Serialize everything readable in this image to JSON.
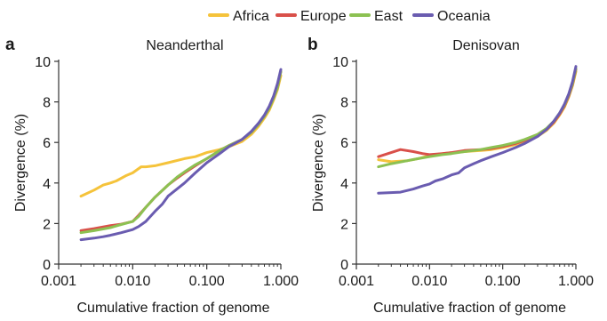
{
  "legend": {
    "items": [
      {
        "name": "Africa",
        "color": "#f5c33b"
      },
      {
        "name": "Europe",
        "color": "#d9504a"
      },
      {
        "name": "East",
        "color": "#8cc152"
      },
      {
        "name": "Oceania",
        "color": "#6a5cb0"
      }
    ]
  },
  "chart_data": [
    {
      "type": "line",
      "panel_label": "a",
      "title": "Neanderthal",
      "xlabel": "Cumulative fraction of genome",
      "ylabel": "Divergence (%)",
      "x_scale": "log",
      "xlim": [
        0.001,
        1.0
      ],
      "ylim": [
        0,
        10
      ],
      "x_ticks": [
        "0.001",
        "0.010",
        "0.100",
        "1.000"
      ],
      "x_tick_values": [
        0.001,
        0.01,
        0.1,
        1.0
      ],
      "y_ticks": [
        "0",
        "2",
        "4",
        "6",
        "8",
        "10"
      ],
      "y_tick_values": [
        0,
        2,
        4,
        6,
        8,
        10
      ],
      "grid": false,
      "legend_position": "top",
      "series": [
        {
          "name": "Africa",
          "color": "#f5c33b",
          "x": [
            0.002,
            0.003,
            0.004,
            0.005,
            0.006,
            0.008,
            0.01,
            0.013,
            0.015,
            0.02,
            0.03,
            0.05,
            0.07,
            0.1,
            0.15,
            0.2,
            0.3,
            0.4,
            0.5,
            0.6,
            0.7,
            0.8,
            0.9,
            1.0
          ],
          "y": [
            3.35,
            3.65,
            3.9,
            4.0,
            4.1,
            4.35,
            4.5,
            4.8,
            4.8,
            4.85,
            5.0,
            5.2,
            5.3,
            5.5,
            5.65,
            5.8,
            6.05,
            6.4,
            6.8,
            7.2,
            7.6,
            8.1,
            8.6,
            9.3
          ]
        },
        {
          "name": "Europe",
          "color": "#d9504a",
          "x": [
            0.002,
            0.003,
            0.005,
            0.007,
            0.01,
            0.012,
            0.015,
            0.02,
            0.03,
            0.04,
            0.05,
            0.07,
            0.1,
            0.15,
            0.2,
            0.3,
            0.4,
            0.5,
            0.6,
            0.7,
            0.8,
            0.9,
            1.0
          ],
          "y": [
            1.65,
            1.75,
            1.9,
            1.97,
            2.1,
            2.4,
            2.8,
            3.3,
            3.9,
            4.25,
            4.5,
            4.85,
            5.2,
            5.6,
            5.85,
            6.15,
            6.5,
            6.9,
            7.3,
            7.7,
            8.2,
            8.7,
            9.5
          ]
        },
        {
          "name": "East",
          "color": "#8cc152",
          "x": [
            0.002,
            0.003,
            0.005,
            0.007,
            0.01,
            0.012,
            0.015,
            0.02,
            0.03,
            0.04,
            0.05,
            0.07,
            0.1,
            0.15,
            0.2,
            0.3,
            0.4,
            0.5,
            0.6,
            0.7,
            0.8,
            0.9,
            1.0
          ],
          "y": [
            1.55,
            1.65,
            1.8,
            1.95,
            2.1,
            2.35,
            2.8,
            3.3,
            3.9,
            4.3,
            4.55,
            4.9,
            5.2,
            5.6,
            5.85,
            6.15,
            6.5,
            6.9,
            7.3,
            7.7,
            8.2,
            8.7,
            9.5
          ]
        },
        {
          "name": "Oceania",
          "color": "#6a5cb0",
          "x": [
            0.002,
            0.003,
            0.004,
            0.005,
            0.007,
            0.01,
            0.012,
            0.015,
            0.02,
            0.025,
            0.03,
            0.05,
            0.07,
            0.1,
            0.15,
            0.2,
            0.3,
            0.4,
            0.5,
            0.6,
            0.7,
            0.8,
            0.9,
            1.0
          ],
          "y": [
            1.2,
            1.28,
            1.35,
            1.42,
            1.55,
            1.7,
            1.85,
            2.1,
            2.6,
            2.95,
            3.35,
            4.0,
            4.5,
            5.0,
            5.45,
            5.8,
            6.15,
            6.55,
            6.95,
            7.35,
            7.8,
            8.3,
            8.9,
            9.6
          ]
        }
      ]
    },
    {
      "type": "line",
      "panel_label": "b",
      "title": "Denisovan",
      "xlabel": "Cumulative fraction of genome",
      "ylabel": "Divergence (%)",
      "x_scale": "log",
      "xlim": [
        0.001,
        1.0
      ],
      "ylim": [
        0,
        10
      ],
      "x_ticks": [
        "0.001",
        "0.010",
        "0.100",
        "1.000"
      ],
      "x_tick_values": [
        0.001,
        0.01,
        0.1,
        1.0
      ],
      "y_ticks": [
        "0",
        "2",
        "4",
        "6",
        "8",
        "10"
      ],
      "y_tick_values": [
        0,
        2,
        4,
        6,
        8,
        10
      ],
      "grid": false,
      "legend_position": "top",
      "series": [
        {
          "name": "Africa",
          "color": "#f5c33b",
          "x": [
            0.002,
            0.003,
            0.005,
            0.007,
            0.01,
            0.015,
            0.02,
            0.03,
            0.05,
            0.07,
            0.1,
            0.15,
            0.2,
            0.3,
            0.4,
            0.5,
            0.6,
            0.7,
            0.8,
            0.9,
            1.0
          ],
          "y": [
            5.15,
            5.05,
            5.1,
            5.2,
            5.35,
            5.45,
            5.5,
            5.55,
            5.6,
            5.65,
            5.75,
            5.9,
            6.05,
            6.3,
            6.6,
            6.95,
            7.35,
            7.75,
            8.25,
            8.8,
            9.5
          ]
        },
        {
          "name": "Europe",
          "color": "#d9504a",
          "x": [
            0.002,
            0.004,
            0.006,
            0.008,
            0.01,
            0.015,
            0.02,
            0.03,
            0.05,
            0.07,
            0.1,
            0.15,
            0.2,
            0.3,
            0.4,
            0.5,
            0.6,
            0.7,
            0.8,
            0.9,
            1.0
          ],
          "y": [
            5.3,
            5.65,
            5.55,
            5.45,
            5.4,
            5.45,
            5.5,
            5.6,
            5.65,
            5.7,
            5.8,
            5.95,
            6.1,
            6.35,
            6.65,
            7.0,
            7.4,
            7.8,
            8.3,
            8.85,
            9.6
          ]
        },
        {
          "name": "East",
          "color": "#8cc152",
          "x": [
            0.002,
            0.003,
            0.005,
            0.007,
            0.01,
            0.015,
            0.02,
            0.03,
            0.05,
            0.07,
            0.1,
            0.15,
            0.2,
            0.3,
            0.4,
            0.5,
            0.6,
            0.7,
            0.8,
            0.9,
            1.0
          ],
          "y": [
            4.8,
            4.95,
            5.1,
            5.2,
            5.3,
            5.4,
            5.45,
            5.55,
            5.65,
            5.75,
            5.85,
            6.0,
            6.15,
            6.4,
            6.7,
            7.05,
            7.45,
            7.85,
            8.35,
            8.9,
            9.65
          ]
        },
        {
          "name": "Oceania",
          "color": "#6a5cb0",
          "x": [
            0.002,
            0.004,
            0.006,
            0.008,
            0.01,
            0.012,
            0.015,
            0.02,
            0.025,
            0.03,
            0.04,
            0.05,
            0.07,
            0.1,
            0.15,
            0.2,
            0.3,
            0.4,
            0.5,
            0.6,
            0.7,
            0.8,
            0.9,
            1.0
          ],
          "y": [
            3.5,
            3.55,
            3.7,
            3.85,
            3.95,
            4.1,
            4.2,
            4.4,
            4.5,
            4.75,
            4.95,
            5.1,
            5.3,
            5.5,
            5.75,
            5.95,
            6.3,
            6.65,
            7.05,
            7.45,
            7.9,
            8.4,
            9.0,
            9.75
          ]
        }
      ]
    }
  ]
}
